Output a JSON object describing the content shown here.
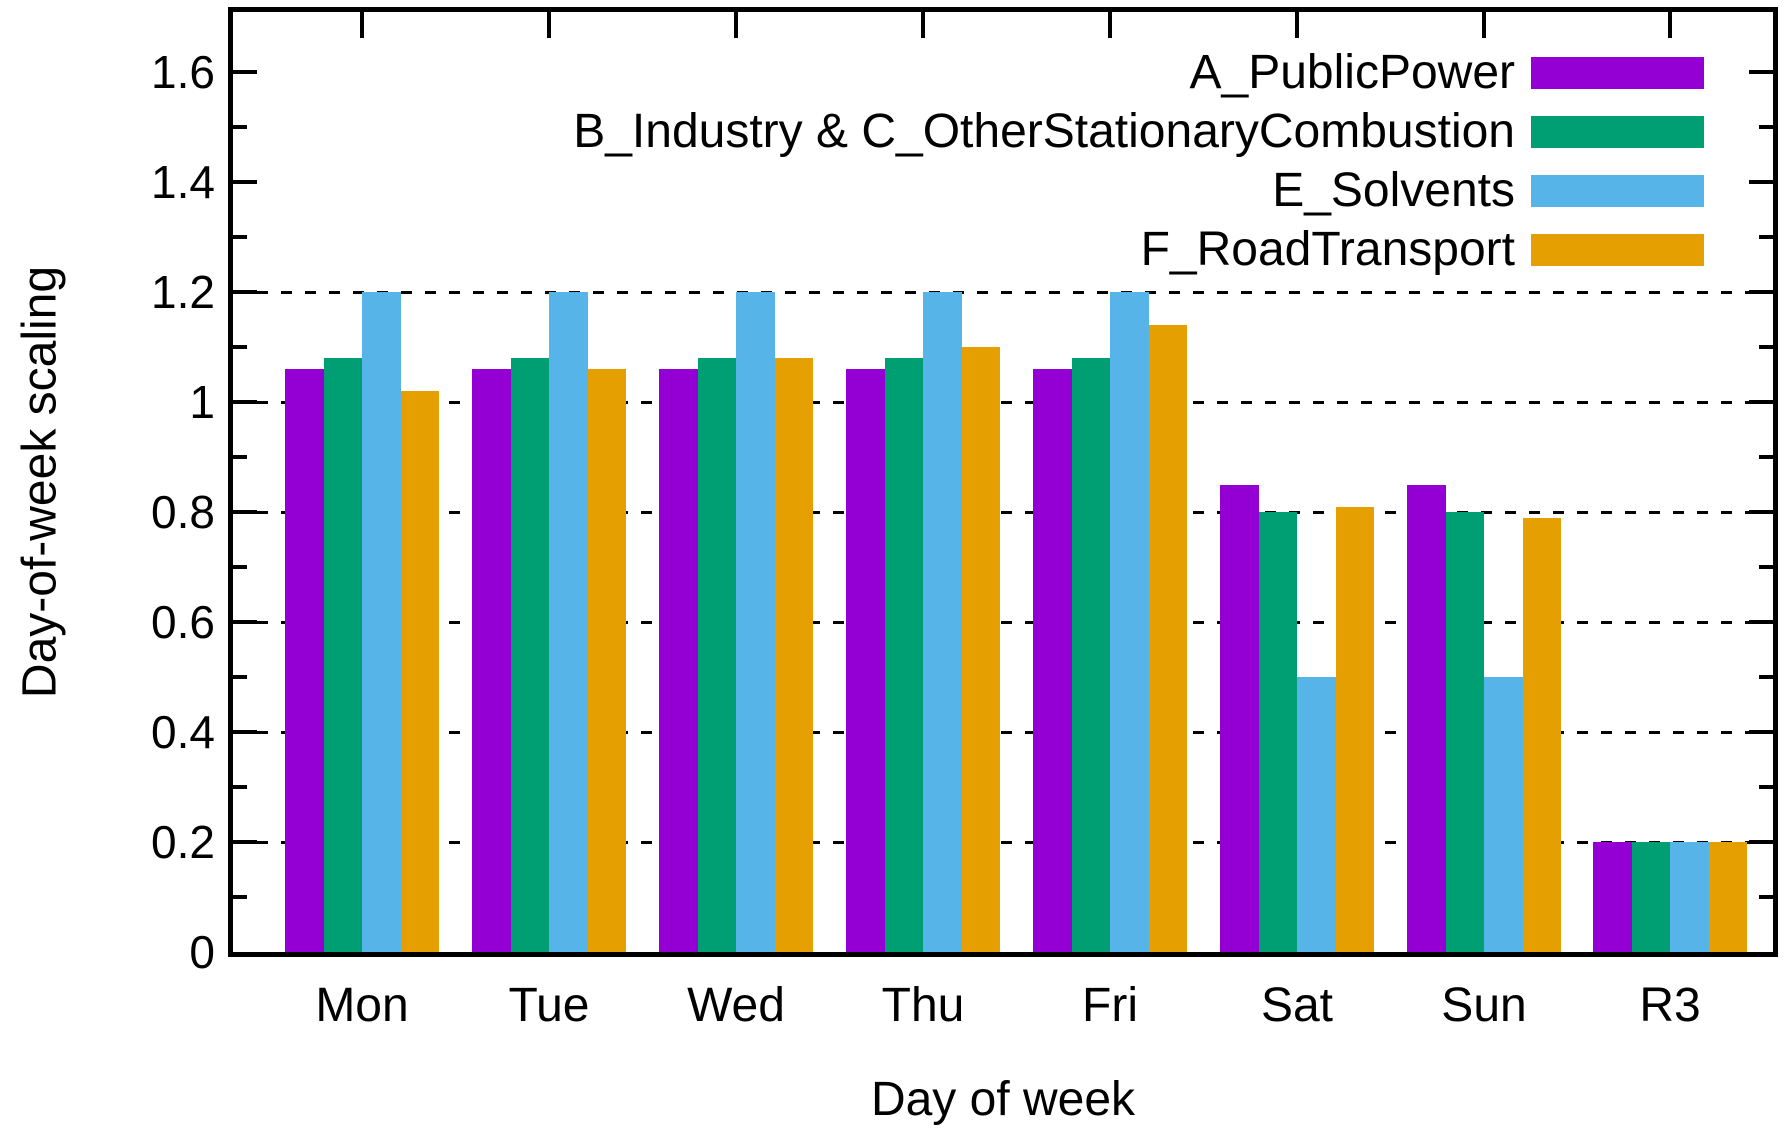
{
  "chart_data": {
    "type": "bar",
    "title": "",
    "xlabel": "Day of week",
    "ylabel": "Day-of-week scaling",
    "categories": [
      "Mon",
      "Tue",
      "Wed",
      "Thu",
      "Fri",
      "Sat",
      "Sun",
      "R3"
    ],
    "series": [
      {
        "name": "A_PublicPower",
        "color": "#9400d3",
        "values": [
          1.06,
          1.06,
          1.06,
          1.06,
          1.06,
          0.85,
          0.85,
          0.2
        ]
      },
      {
        "name": "B_Industry & C_OtherStationaryCombustion",
        "color": "#009e73",
        "values": [
          1.08,
          1.08,
          1.08,
          1.08,
          1.08,
          0.8,
          0.8,
          0.2
        ]
      },
      {
        "name": "E_Solvents",
        "color": "#56b4e9",
        "values": [
          1.2,
          1.2,
          1.2,
          1.2,
          1.2,
          0.5,
          0.5,
          0.2
        ]
      },
      {
        "name": "F_RoadTransport",
        "color": "#e69f00",
        "values": [
          1.02,
          1.06,
          1.08,
          1.1,
          1.14,
          0.81,
          0.79,
          0.2
        ]
      }
    ],
    "ylim": [
      0,
      1.71
    ],
    "yticks": [
      {
        "label": "0",
        "value": 0
      },
      {
        "label": "0.2",
        "value": 0.2
      },
      {
        "label": "0.4",
        "value": 0.4
      },
      {
        "label": "0.6",
        "value": 0.6
      },
      {
        "label": "0.8",
        "value": 0.8
      },
      {
        "label": "1",
        "value": 1
      },
      {
        "label": "1.2",
        "value": 1.2
      },
      {
        "label": "1.4",
        "value": 1.4
      },
      {
        "label": "1.6",
        "value": 1.6
      }
    ],
    "minor_tick_step": 0.1,
    "grid_values": [
      0.2,
      0.4,
      0.6,
      0.8,
      1.0,
      1.2
    ],
    "grid_style": "horizontal-dashed",
    "legend_position": "top-right-inside",
    "background_color": "#ffffff",
    "axis_color": "#000000"
  }
}
